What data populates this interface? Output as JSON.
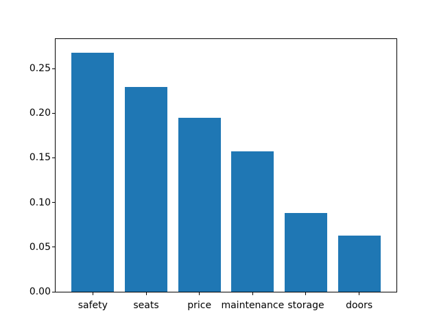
{
  "chart_data": {
    "type": "bar",
    "title": "",
    "xlabel": "",
    "ylabel": "",
    "categories": [
      "safety",
      "seats",
      "price",
      "maintenance",
      "storage",
      "doors"
    ],
    "values": [
      0.268,
      0.229,
      0.195,
      0.157,
      0.088,
      0.063
    ],
    "yticks": [
      "0.00",
      "0.05",
      "0.10",
      "0.15",
      "0.20",
      "0.25"
    ],
    "ytick_values": [
      0.0,
      0.05,
      0.1,
      0.15,
      0.2,
      0.25
    ],
    "ylim": [
      0,
      0.283
    ],
    "xlim": [
      -0.7,
      5.7
    ],
    "bar_width_data_units": 0.8,
    "bar_color": "#1f77b4",
    "axes_edge_color": "#000000",
    "tick_color": "#000000",
    "background_color": "#ffffff",
    "grid": false,
    "legend": null
  }
}
